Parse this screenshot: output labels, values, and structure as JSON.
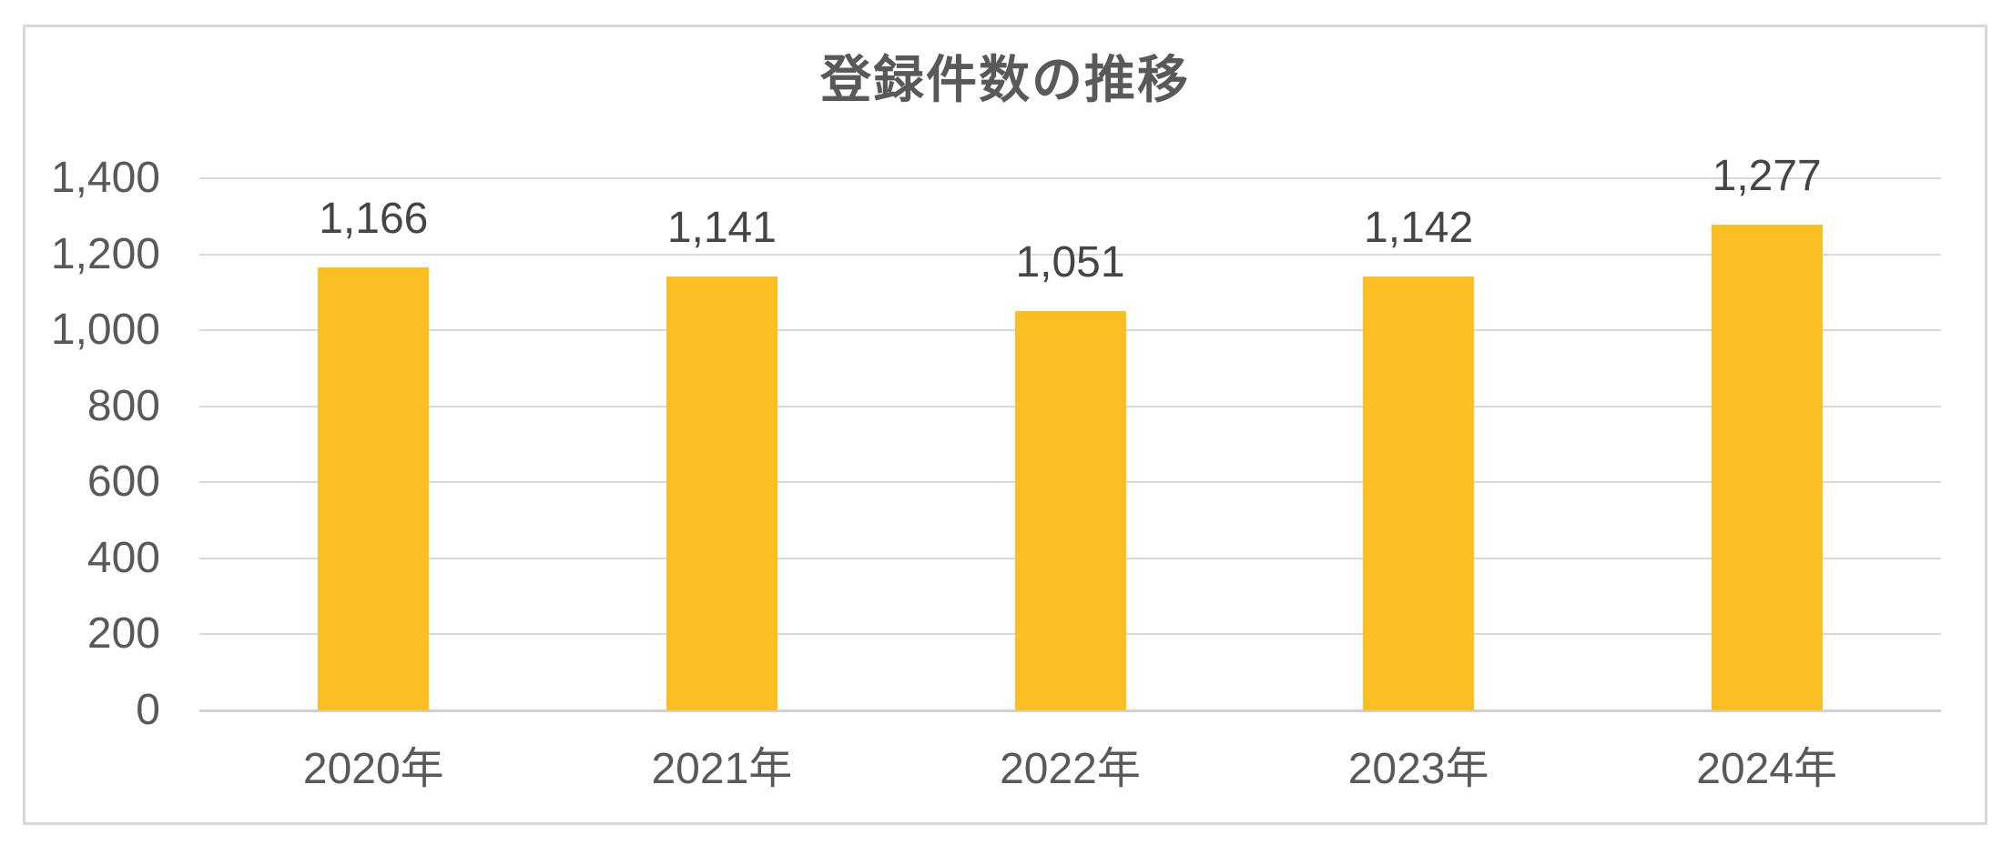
{
  "chart_data": {
    "type": "bar",
    "title": "登録件数の推移",
    "categories": [
      "2020年",
      "2021年",
      "2022年",
      "2023年",
      "2024年"
    ],
    "values": [
      1166,
      1141,
      1051,
      1142,
      1277
    ],
    "value_labels": [
      "1,166",
      "1,141",
      "1,051",
      "1,142",
      "1,277"
    ],
    "xlabel": "",
    "ylabel": "",
    "ylim": [
      0,
      1400
    ],
    "ytick_step": 200,
    "yticks": [
      {
        "value": 0,
        "label": "0"
      },
      {
        "value": 200,
        "label": "200"
      },
      {
        "value": 400,
        "label": "400"
      },
      {
        "value": 600,
        "label": "600"
      },
      {
        "value": 800,
        "label": "800"
      },
      {
        "value": 1000,
        "label": "1,000"
      },
      {
        "value": 1200,
        "label": "1,200"
      },
      {
        "value": 1400,
        "label": "1,400"
      }
    ],
    "grid": true,
    "legend_position": "none",
    "colors": {
      "bar_fill": "#FBBE23",
      "title_text": "#595959",
      "axis_label_text": "#595959",
      "data_label_text": "#454545",
      "gridline": "#D9D9D9",
      "axis_line": "#D2D2D2",
      "frame_border": "#D9D9D9",
      "background": "#FFFFFF"
    }
  }
}
